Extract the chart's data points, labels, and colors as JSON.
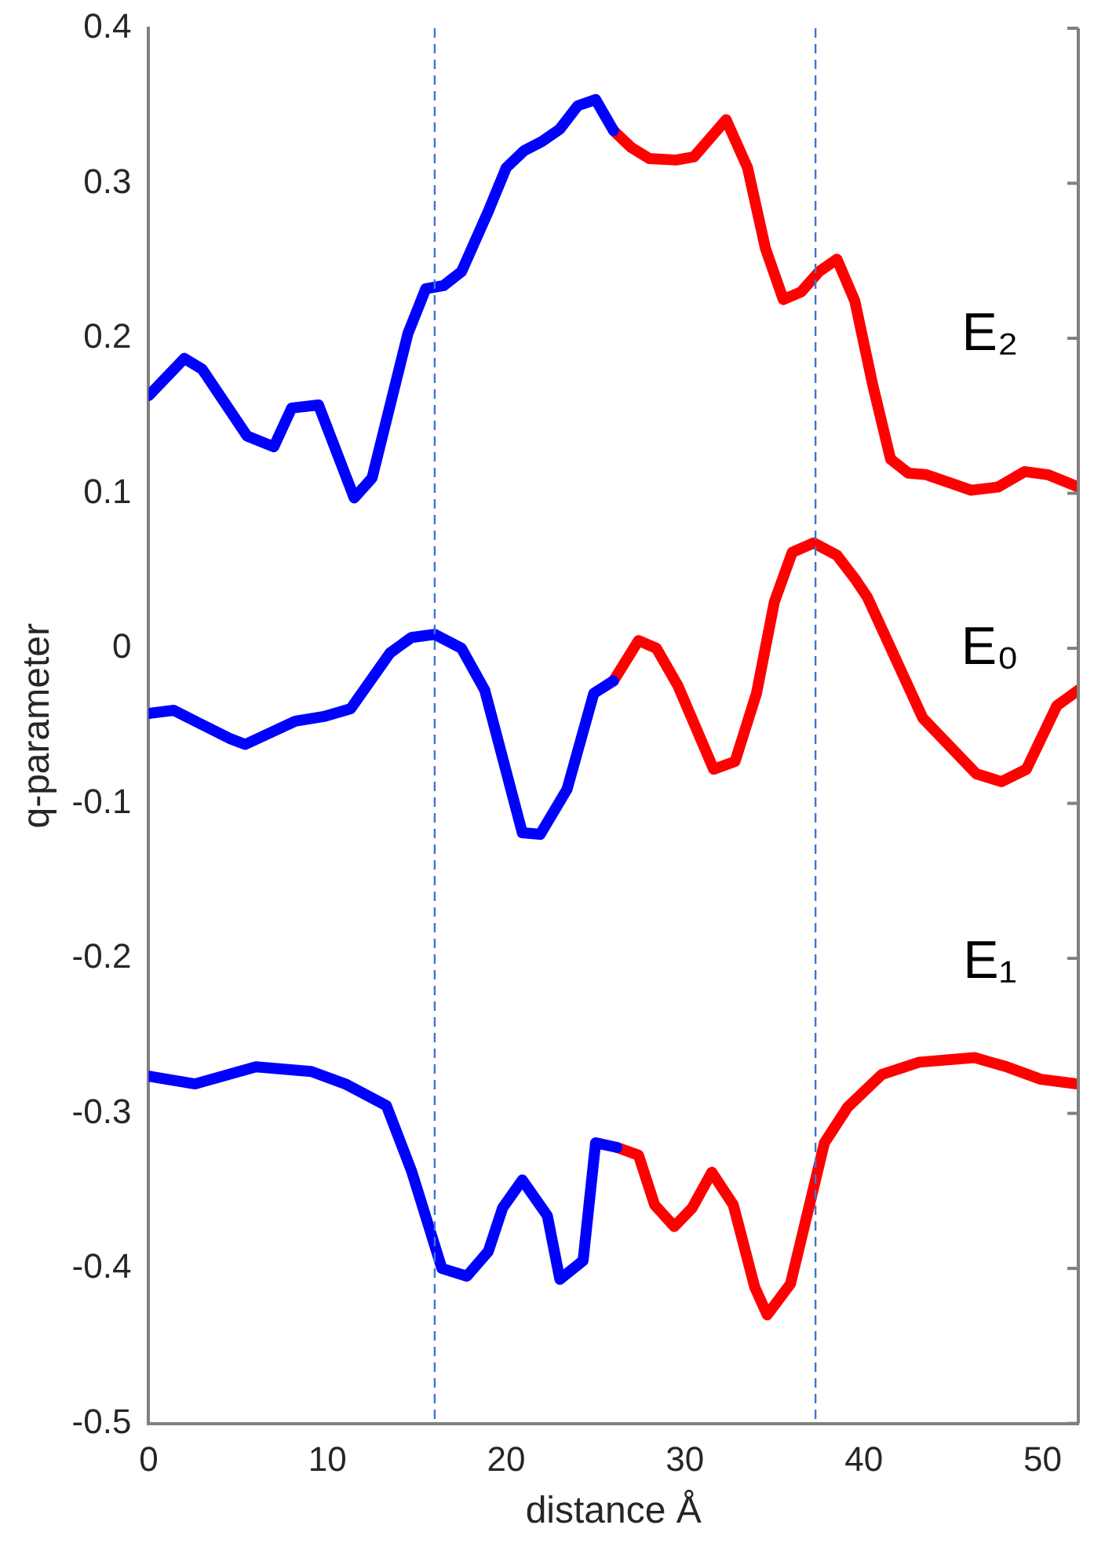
{
  "chart_data": {
    "type": "line",
    "xlabel": "distance Å",
    "ylabel": "q-parameter",
    "xlim": [
      0,
      52
    ],
    "xticks": [
      0,
      10,
      20,
      30,
      40,
      50
    ],
    "ylim": [
      -0.5,
      0.4
    ],
    "yticks": [
      -0.5,
      -0.4,
      -0.3,
      -0.2,
      -0.1,
      0,
      0.1,
      0.2,
      0.3,
      0.4
    ],
    "grid": false,
    "legend": false,
    "marker": "none",
    "line_style": "solid",
    "series": [
      {
        "color": "#0000ff",
        "x": [
          0,
          2,
          3,
          5.5,
          7,
          8,
          9.5,
          11.5,
          12.5,
          14.5,
          15.5,
          16.5,
          17.5,
          19,
          20,
          21,
          22,
          23,
          24,
          25,
          26
        ],
        "values": [
          0.163,
          0.187,
          0.18,
          0.137,
          0.13,
          0.155,
          0.157,
          0.097,
          0.11,
          0.203,
          0.232,
          0.234,
          0.243,
          0.282,
          0.31,
          0.321,
          0.327,
          0.335,
          0.35,
          0.354,
          0.334
        ]
      },
      {
        "color": "#ff0000",
        "x": [
          26,
          27,
          28,
          29.5,
          30.5,
          32.3,
          33.5,
          34.5,
          35.5,
          36.5,
          37.5,
          38.5,
          39.5,
          40.5,
          41.5,
          42.5,
          43.5,
          45,
          46,
          47.5,
          49,
          50.3,
          52
        ],
        "values": [
          0.334,
          0.323,
          0.316,
          0.315,
          0.317,
          0.341,
          0.31,
          0.258,
          0.225,
          0.23,
          0.243,
          0.251,
          0.224,
          0.17,
          0.122,
          0.113,
          0.112,
          0.106,
          0.102,
          0.104,
          0.114,
          0.112,
          0.104
        ]
      },
      {
        "color": "#0000ff",
        "x": [
          0,
          1.4,
          4.5,
          5.4,
          8.2,
          9.8,
          11.3,
          13.5,
          14.7,
          16,
          17.5,
          18.8,
          20.9,
          21.9,
          23.4,
          24.9,
          26
        ],
        "values": [
          -0.042,
          -0.04,
          -0.058,
          -0.062,
          -0.047,
          -0.044,
          -0.039,
          -0.003,
          0.007,
          0.009,
          0,
          -0.027,
          -0.119,
          -0.12,
          -0.091,
          -0.029,
          -0.021
        ]
      },
      {
        "color": "#ff0000",
        "x": [
          26,
          27.4,
          28.4,
          29.6,
          31.6,
          32.8,
          34,
          35,
          36,
          37.2,
          38.5,
          39.5,
          40.2,
          43.3,
          46.3,
          47.7,
          49.1,
          50.8,
          52
        ],
        "values": [
          -0.021,
          0.005,
          0,
          -0.024,
          -0.078,
          -0.073,
          -0.029,
          0.03,
          0.062,
          0.068,
          0.06,
          0.045,
          0.033,
          -0.045,
          -0.081,
          -0.086,
          -0.078,
          -0.037,
          -0.027
        ]
      },
      {
        "color": "#0000ff",
        "x": [
          0,
          2.6,
          6,
          9.1,
          11,
          13.3,
          14.7,
          16.4,
          17.8,
          19,
          19.8,
          20.9,
          22.3,
          23,
          24.3,
          25,
          26.2
        ],
        "values": [
          -0.276,
          -0.281,
          -0.27,
          -0.273,
          -0.281,
          -0.295,
          -0.337,
          -0.4,
          -0.405,
          -0.389,
          -0.361,
          -0.343,
          -0.366,
          -0.407,
          -0.395,
          -0.319,
          -0.322
        ]
      },
      {
        "color": "#ff0000",
        "x": [
          26.2,
          27.4,
          28.3,
          29.4,
          30.4,
          31.5,
          32.7,
          33.9,
          34.6,
          35.9,
          37.8,
          39.1,
          41,
          43.1,
          46.2,
          48,
          49.9,
          51.9
        ],
        "values": [
          -0.322,
          -0.327,
          -0.359,
          -0.373,
          -0.361,
          -0.338,
          -0.359,
          -0.412,
          -0.43,
          -0.41,
          -0.319,
          -0.296,
          -0.275,
          -0.267,
          -0.264,
          -0.27,
          -0.278,
          -0.281
        ]
      }
    ],
    "ref_lines": [
      {
        "axis": "x",
        "value": 16,
        "color": "#3a78d0",
        "line_style": "dashed"
      },
      {
        "axis": "x",
        "value": 37.3,
        "color": "#3a78d0",
        "line_style": "dashed"
      }
    ],
    "annotations": [
      "E₂",
      "E₀",
      "E₁"
    ]
  }
}
